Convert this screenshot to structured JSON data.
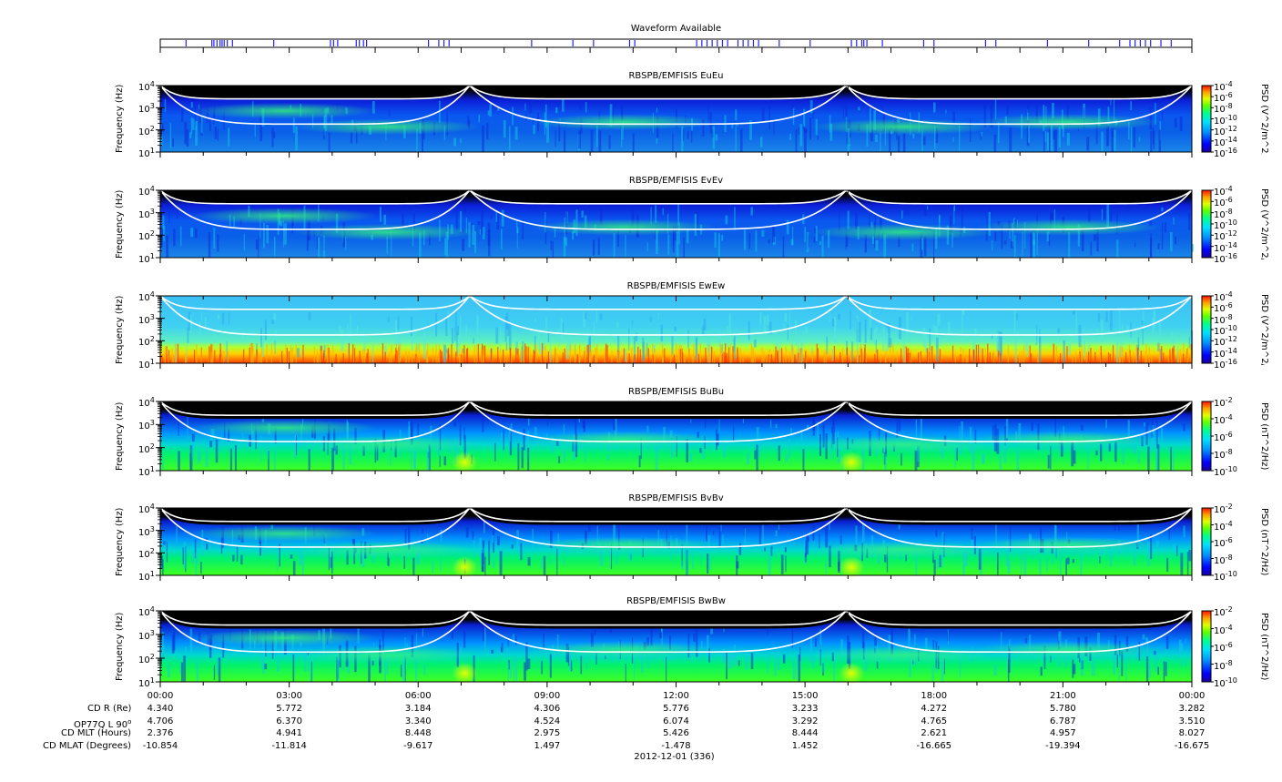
{
  "waveform": {
    "title": "Waveform Available",
    "ticks": [
      0.025,
      0.05,
      0.052,
      0.055,
      0.058,
      0.06,
      0.062,
      0.065,
      0.07,
      0.11,
      0.165,
      0.168,
      0.172,
      0.19,
      0.193,
      0.197,
      0.2,
      0.26,
      0.27,
      0.275,
      0.28,
      0.36,
      0.4,
      0.42,
      0.455,
      0.46,
      0.52,
      0.525,
      0.53,
      0.535,
      0.54,
      0.545,
      0.55,
      0.56,
      0.565,
      0.57,
      0.575,
      0.58,
      0.6,
      0.63,
      0.67,
      0.675,
      0.68,
      0.682,
      0.685,
      0.7,
      0.74,
      0.75,
      0.8,
      0.81,
      0.86,
      0.9,
      0.93,
      0.94,
      0.945,
      0.95,
      0.955,
      0.96,
      0.97,
      0.98
    ]
  },
  "panels": [
    {
      "title": "RBSPB/EMFISIS  EuEu",
      "ylabel": "Frequency (Hz)",
      "yticks": [
        "10",
        "10",
        "10",
        "10"
      ],
      "yexp": [
        "1",
        "2",
        "3",
        "4"
      ],
      "cb_label": "PSD (V^2/m^2/Hz)",
      "cb_ticks": [
        "10",
        "10",
        "10",
        "10",
        "10",
        "10",
        "10"
      ],
      "cb_exp": [
        "-4",
        "-6",
        "-8",
        "-10",
        "-12",
        "-14",
        "-16"
      ],
      "kind": "E"
    },
    {
      "title": "RBSPB/EMFISIS  EvEv",
      "ylabel": "Frequency (Hz)",
      "yticks": [
        "10",
        "10",
        "10",
        "10"
      ],
      "yexp": [
        "1",
        "2",
        "3",
        "4"
      ],
      "cb_label": "PSD (V^2/m^2/Hz)",
      "cb_ticks": [
        "10",
        "10",
        "10",
        "10",
        "10",
        "10",
        "10"
      ],
      "cb_exp": [
        "-4",
        "-6",
        "-8",
        "-10",
        "-12",
        "-14",
        "-16"
      ],
      "kind": "E"
    },
    {
      "title": "RBSPB/EMFISIS  EwEw",
      "ylabel": "Frequency (Hz)",
      "yticks": [
        "10",
        "10",
        "10",
        "10"
      ],
      "yexp": [
        "1",
        "2",
        "3",
        "4"
      ],
      "cb_label": "PSD (V^2/m^2/Hz)",
      "cb_ticks": [
        "10",
        "10",
        "10",
        "10",
        "10",
        "10",
        "10"
      ],
      "cb_exp": [
        "-4",
        "-6",
        "-8",
        "-10",
        "-12",
        "-14",
        "-16"
      ],
      "kind": "Ew"
    },
    {
      "title": "RBSPB/EMFISIS  BuBu",
      "ylabel": "Frequency (Hz)",
      "yticks": [
        "10",
        "10",
        "10",
        "10"
      ],
      "yexp": [
        "1",
        "2",
        "3",
        "4"
      ],
      "cb_label": "PSD (nT^2/Hz)",
      "cb_ticks": [
        "10",
        "10",
        "10",
        "10",
        "10"
      ],
      "cb_exp": [
        "-2",
        "-4",
        "-6",
        "-8",
        "-10"
      ],
      "kind": "B"
    },
    {
      "title": "RBSPB/EMFISIS  BvBv",
      "ylabel": "Frequency (Hz)",
      "yticks": [
        "10",
        "10",
        "10",
        "10"
      ],
      "yexp": [
        "1",
        "2",
        "3",
        "4"
      ],
      "cb_label": "PSD (nT^2/Hz)",
      "cb_ticks": [
        "10",
        "10",
        "10",
        "10",
        "10"
      ],
      "cb_exp": [
        "-2",
        "-4",
        "-6",
        "-8",
        "-10"
      ],
      "kind": "B"
    },
    {
      "title": "RBSPB/EMFISIS  BwBw",
      "ylabel": "Frequency (Hz)",
      "yticks": [
        "10",
        "10",
        "10",
        "10"
      ],
      "yexp": [
        "1",
        "2",
        "3",
        "4"
      ],
      "cb_label": "PSD (nT^2/Hz)",
      "cb_ticks": [
        "10",
        "10",
        "10",
        "10",
        "10"
      ],
      "cb_exp": [
        "-2",
        "-4",
        "-6",
        "-8",
        "-10"
      ],
      "kind": "B"
    }
  ],
  "chart_data": {
    "type": "heatmap",
    "x_range": [
      "00:00",
      "00:00"
    ],
    "y_range": [
      10,
      10000
    ],
    "y_scale": "log",
    "x_tick_labels": [
      "00:00",
      "03:00",
      "06:00",
      "09:00",
      "12:00",
      "15:00",
      "18:00",
      "21:00",
      "00:00"
    ],
    "date_label": "2012-12-01 (336)",
    "colormap": [
      "#1a00c8",
      "#0050ff",
      "#00c8ff",
      "#00ff80",
      "#c8ff00",
      "#ffb000",
      "#ff2000"
    ],
    "colorbar_E": {
      "label": "PSD (V^2/m^2/Hz)",
      "range_exp": [
        -16,
        -4
      ]
    },
    "colorbar_B": {
      "label": "PSD (nT^2/Hz)",
      "range_exp": [
        -10,
        -2
      ]
    }
  },
  "ephemeris": {
    "rows": [
      {
        "label": "CD R (Re)",
        "values": [
          "4.340",
          "5.772",
          "3.184",
          "4.306",
          "5.776",
          "3.233",
          "4.272",
          "5.780",
          "3.282"
        ]
      },
      {
        "label": "OP77Q L 90",
        "label_sup": "o",
        "values": [
          "4.706",
          "6.370",
          "3.340",
          "4.524",
          "6.074",
          "3.292",
          "4.765",
          "6.787",
          "3.510"
        ]
      },
      {
        "label": "CD MLT (Hours)",
        "values": [
          "2.376",
          "4.941",
          "8.448",
          "2.975",
          "5.426",
          "8.444",
          "2.621",
          "4.957",
          "8.027"
        ]
      },
      {
        "label": "CD MLAT (Degrees)",
        "values": [
          "-10.854",
          "-11.814",
          "-9.617",
          "1.497",
          "-1.478",
          "1.452",
          "-16.665",
          "-19.394",
          "-16.675"
        ]
      }
    ]
  }
}
